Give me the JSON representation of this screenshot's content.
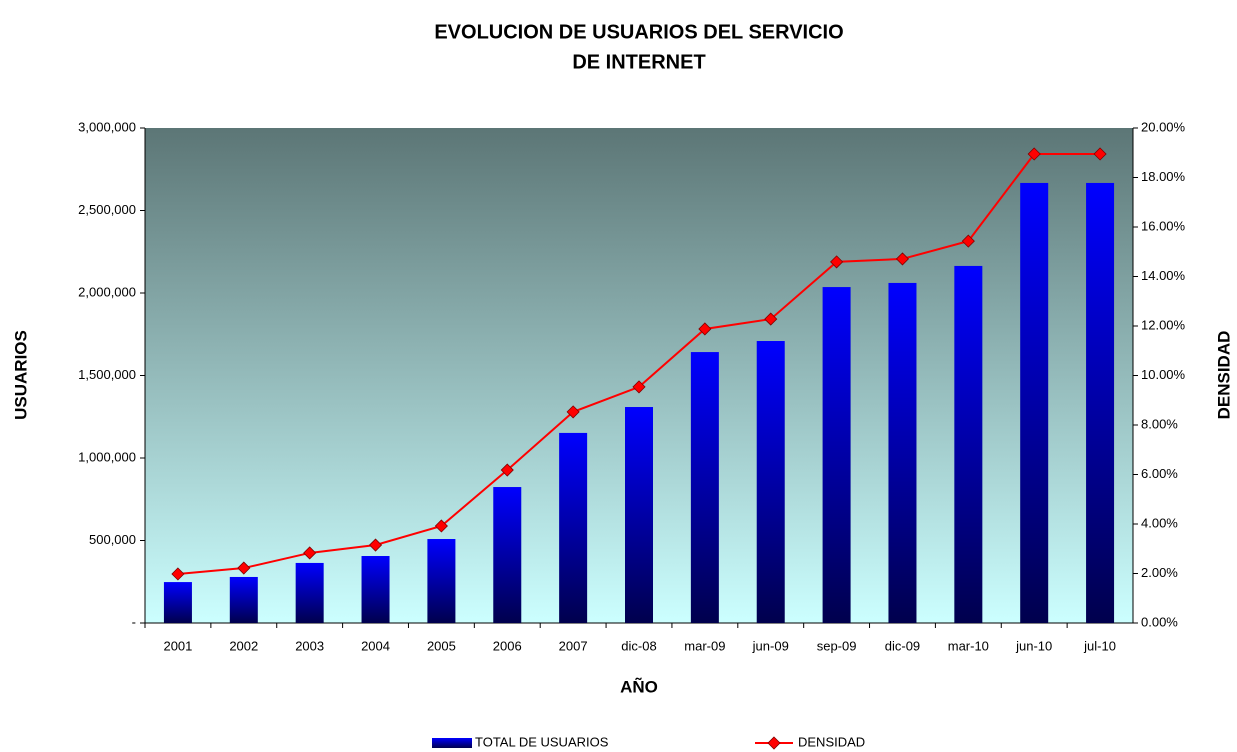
{
  "chart_data": {
    "type": "bar",
    "title": [
      "EVOLUCION DE USUARIOS DEL SERVICIO",
      "DE INTERNET"
    ],
    "x_label": "AÑO",
    "y_label": "USUARIOS",
    "y2_label": "DENSIDAD",
    "categories": [
      "2001",
      "2002",
      "2003",
      "2004",
      "2005",
      "2006",
      "2007",
      "dic-08",
      "mar-09",
      "jun-09",
      "sep-09",
      "dic-09",
      "mar-10",
      "jun-10",
      "jul-10"
    ],
    "series": [
      {
        "name": "TOTAL DE USUARIOS",
        "color": "#0000ff",
        "type": "bar",
        "values": [
          248000,
          279000,
          364000,
          406000,
          509000,
          824000,
          1152000,
          1309000,
          1642000,
          1709000,
          2036000,
          2061000,
          2164000,
          2667000,
          2667000
        ]
      },
      {
        "name": "DENSIDAD",
        "color": "#ff0000",
        "type": "line",
        "axis": "y2",
        "values": [
          1.98,
          2.22,
          2.83,
          3.15,
          3.92,
          6.18,
          8.53,
          9.54,
          11.88,
          12.28,
          14.59,
          14.71,
          15.43,
          18.95,
          18.95
        ]
      }
    ],
    "ylim": [
      0,
      3000000
    ],
    "yticks": [
      {
        "value": 0,
        "label": "-"
      },
      {
        "value": 500000,
        "label": "500,000"
      },
      {
        "value": 1000000,
        "label": "1,000,000"
      },
      {
        "value": 1500000,
        "label": "1,500,000"
      },
      {
        "value": 2000000,
        "label": "2,000,000"
      },
      {
        "value": 2500000,
        "label": "2,500,000"
      },
      {
        "value": 3000000,
        "label": "3,000,000"
      }
    ],
    "y2lim": [
      0,
      20
    ],
    "y2ticks": [
      {
        "value": 0,
        "label": "0.00%"
      },
      {
        "value": 2,
        "label": "2.00%"
      },
      {
        "value": 4,
        "label": "4.00%"
      },
      {
        "value": 6,
        "label": "6.00%"
      },
      {
        "value": 8,
        "label": "8.00%"
      },
      {
        "value": 10,
        "label": "10.00%"
      },
      {
        "value": 12,
        "label": "12.00%"
      },
      {
        "value": 14,
        "label": "14.00%"
      },
      {
        "value": 16,
        "label": "16.00%"
      },
      {
        "value": 18,
        "label": "18.00%"
      },
      {
        "value": 20,
        "label": "20.00%"
      }
    ],
    "legend": "bottom"
  }
}
